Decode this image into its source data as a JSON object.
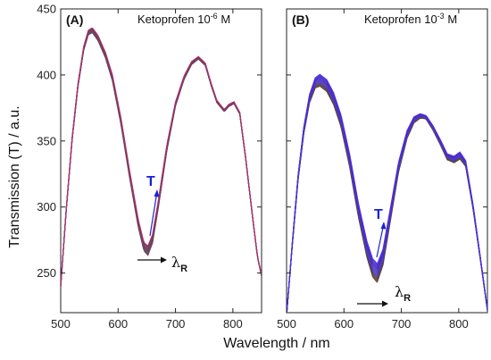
{
  "chart_data": {
    "type": "line",
    "ylabel": "Transmission (T) / a.u.",
    "xlabel": "Wavelength / nm",
    "ylim": [
      220,
      450
    ],
    "yticks": [
      250,
      300,
      350,
      400,
      450
    ],
    "panels": [
      {
        "id": "A",
        "label": "(A)",
        "title_main": "Ketoprofen 10",
        "title_exp": "-6",
        "title_unit": " M",
        "xlim": [
          500,
          850
        ],
        "xticks": [
          500,
          600,
          700,
          800
        ],
        "n_curves": 14,
        "curve_spread": 4,
        "curve_colors": [
          "#7b3a2a",
          "#8a2f3c",
          "#5c4a9a",
          "#3d5ca8",
          "#6a3a6e",
          "#8a4030",
          "#2f6e4a",
          "#9a3050",
          "#4a3a9a",
          "#7a5a2a",
          "#a03060",
          "#5a4a7a",
          "#6a2a2a",
          "#c03080"
        ],
        "spread_envelope": [
          [
            500,
            0.2
          ],
          [
            550,
            0.9
          ],
          [
            640,
            1.5
          ],
          [
            652,
            1.8
          ],
          [
            700,
            0.8
          ],
          [
            740,
            0.5
          ],
          [
            800,
            0.4
          ],
          [
            850,
            0.2
          ]
        ],
        "base_curve": [
          [
            500,
            240
          ],
          [
            510,
            300
          ],
          [
            520,
            352
          ],
          [
            530,
            392
          ],
          [
            540,
            420
          ],
          [
            548,
            432
          ],
          [
            555,
            434
          ],
          [
            565,
            428
          ],
          [
            578,
            415
          ],
          [
            590,
            398
          ],
          [
            605,
            365
          ],
          [
            620,
            325
          ],
          [
            635,
            288
          ],
          [
            645,
            270
          ],
          [
            652,
            267
          ],
          [
            660,
            276
          ],
          [
            670,
            302
          ],
          [
            685,
            345
          ],
          [
            700,
            378
          ],
          [
            715,
            398
          ],
          [
            728,
            409
          ],
          [
            740,
            413
          ],
          [
            752,
            408
          ],
          [
            762,
            393
          ],
          [
            772,
            380
          ],
          [
            785,
            373
          ],
          [
            793,
            377
          ],
          [
            802,
            379
          ],
          [
            812,
            371
          ],
          [
            822,
            338
          ],
          [
            835,
            290
          ],
          [
            843,
            262
          ],
          [
            850,
            248
          ]
        ],
        "annotation_T": "T",
        "annotation_lambda": "λ",
        "annotation_lambda_sub": "R"
      },
      {
        "id": "B",
        "label": "(B)",
        "title_main": "Ketoprofen 10",
        "title_exp": "-3",
        "title_unit": " M",
        "xlim": [
          500,
          850
        ],
        "xticks": [
          500,
          600,
          700,
          800
        ],
        "n_curves": 18,
        "curve_spread": 9,
        "curve_colors": [
          "#5a3a2a",
          "#4a4a3a",
          "#6a3a3a",
          "#5a4a2a",
          "#3a4a6a",
          "#4a3aaa",
          "#5a3ab8",
          "#6a30c0",
          "#4a40c8",
          "#3a3ad0",
          "#5030c8",
          "#6a3ab0",
          "#4a2ab8",
          "#3a30c8",
          "#5a20c0",
          "#4040d0",
          "#3a2ad8",
          "#5030e0"
        ],
        "spread_envelope": [
          [
            500,
            0.1
          ],
          [
            540,
            0.7
          ],
          [
            558,
            1.0
          ],
          [
            590,
            1.0
          ],
          [
            630,
            1.2
          ],
          [
            655,
            1.6
          ],
          [
            690,
            0.9
          ],
          [
            740,
            0.3
          ],
          [
            780,
            0.5
          ],
          [
            802,
            0.6
          ],
          [
            830,
            0.3
          ],
          [
            850,
            0.1
          ]
        ],
        "base_curve": [
          [
            500,
            218
          ],
          [
            510,
            272
          ],
          [
            520,
            322
          ],
          [
            530,
            358
          ],
          [
            540,
            382
          ],
          [
            550,
            394
          ],
          [
            558,
            396
          ],
          [
            570,
            392
          ],
          [
            582,
            382
          ],
          [
            595,
            365
          ],
          [
            610,
            335
          ],
          [
            625,
            298
          ],
          [
            640,
            268
          ],
          [
            650,
            254
          ],
          [
            658,
            250
          ],
          [
            668,
            262
          ],
          [
            680,
            292
          ],
          [
            695,
            330
          ],
          [
            710,
            355
          ],
          [
            722,
            366
          ],
          [
            733,
            369
          ],
          [
            743,
            368
          ],
          [
            755,
            360
          ],
          [
            768,
            349
          ],
          [
            780,
            338
          ],
          [
            792,
            336
          ],
          [
            802,
            339
          ],
          [
            812,
            333
          ],
          [
            825,
            300
          ],
          [
            838,
            260
          ],
          [
            845,
            238
          ],
          [
            850,
            222
          ]
        ],
        "annotation_T": "T",
        "annotation_lambda": "λ",
        "annotation_lambda_sub": "R"
      }
    ]
  }
}
